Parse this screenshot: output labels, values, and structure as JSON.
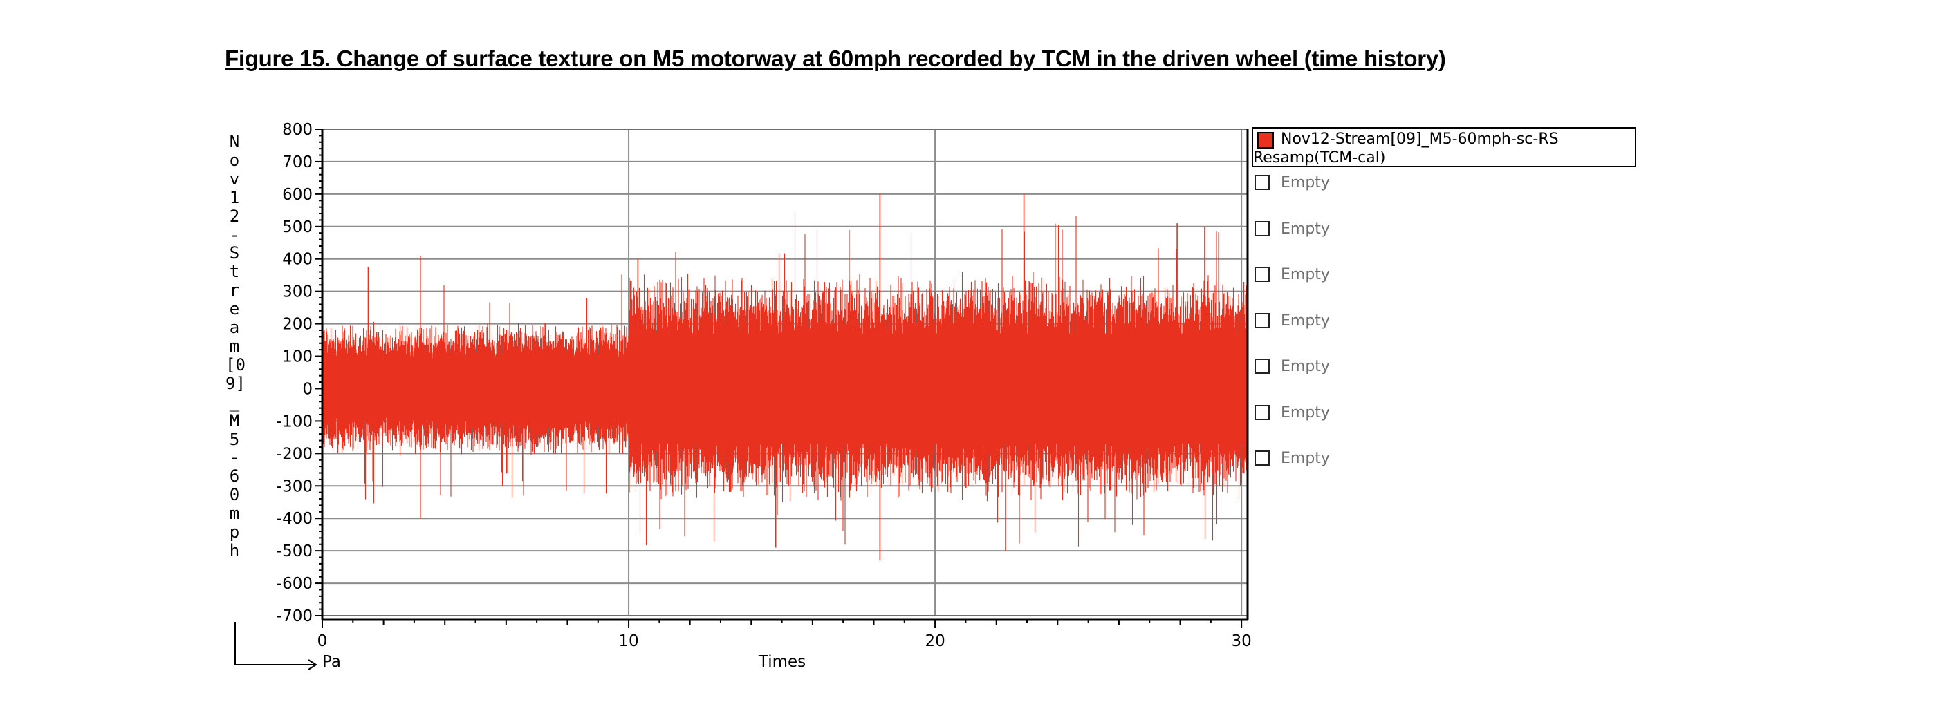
{
  "figure": {
    "title": "Figure 15. Change of surface texture on M5 motorway at 60mph recorded by TCM in the driven wheel (time history)"
  },
  "chart_data": {
    "type": "line",
    "title": "Figure 15. Change of surface texture on M5 motorway at 60mph recorded by TCM in the driven wheel (time history)",
    "ylabel": "Nov12-Stream[09]_M5-60mph",
    "x_unit": "Pa",
    "xlabel": "Times",
    "xlim": [
      0,
      30.2
    ],
    "ylim": [
      -700,
      800
    ],
    "x_ticks": [
      "0",
      "10",
      "20",
      "30"
    ],
    "y_ticks": [
      "800",
      "700",
      "600",
      "500",
      "400",
      "300",
      "200",
      "100",
      "0",
      "-100",
      "-200",
      "-300",
      "-400",
      "-500",
      "-600",
      "-700"
    ],
    "grid": true,
    "legend_position": "right",
    "color": "#e8321f",
    "series": [
      {
        "name": "Nov12-Stream[09]_M5-60mph-sc-RS Resamp(TCM-cal)",
        "segments": [
          {
            "x_range": [
              0,
              10
            ],
            "typical_envelope": [
              -190,
              190
            ],
            "peak_max": 410,
            "peak_min": -400
          },
          {
            "x_range": [
              10,
              30.2
            ],
            "typical_envelope": [
              -320,
              330
            ],
            "peak_max": 600,
            "peak_min": -530
          }
        ],
        "peaks": [
          {
            "x": 1.5,
            "y": 375
          },
          {
            "x": 3.2,
            "y": 410
          },
          {
            "x": 3.2,
            "y": -400
          },
          {
            "x": 10.3,
            "y": 400
          },
          {
            "x": 18.2,
            "y": 600
          },
          {
            "x": 18.2,
            "y": -530
          },
          {
            "x": 22.9,
            "y": 600
          },
          {
            "x": 22.3,
            "y": -500
          },
          {
            "x": 27.9,
            "y": 510
          },
          {
            "x": 28.8,
            "y": 500
          },
          {
            "x": 14.8,
            "y": -490
          }
        ]
      }
    ]
  },
  "legend": {
    "entries": [
      {
        "label": "Nov12-Stream[09]_M5-60mph-sc-RS\nResamp(TCM-cal)",
        "checked": true,
        "color": "#e8321f"
      },
      {
        "label": "Empty",
        "checked": false
      },
      {
        "label": "Empty",
        "checked": false
      },
      {
        "label": "Empty",
        "checked": false
      },
      {
        "label": "Empty",
        "checked": false
      },
      {
        "label": "Empty",
        "checked": false
      },
      {
        "label": "Empty",
        "checked": false
      },
      {
        "label": "Empty",
        "checked": false
      }
    ]
  }
}
